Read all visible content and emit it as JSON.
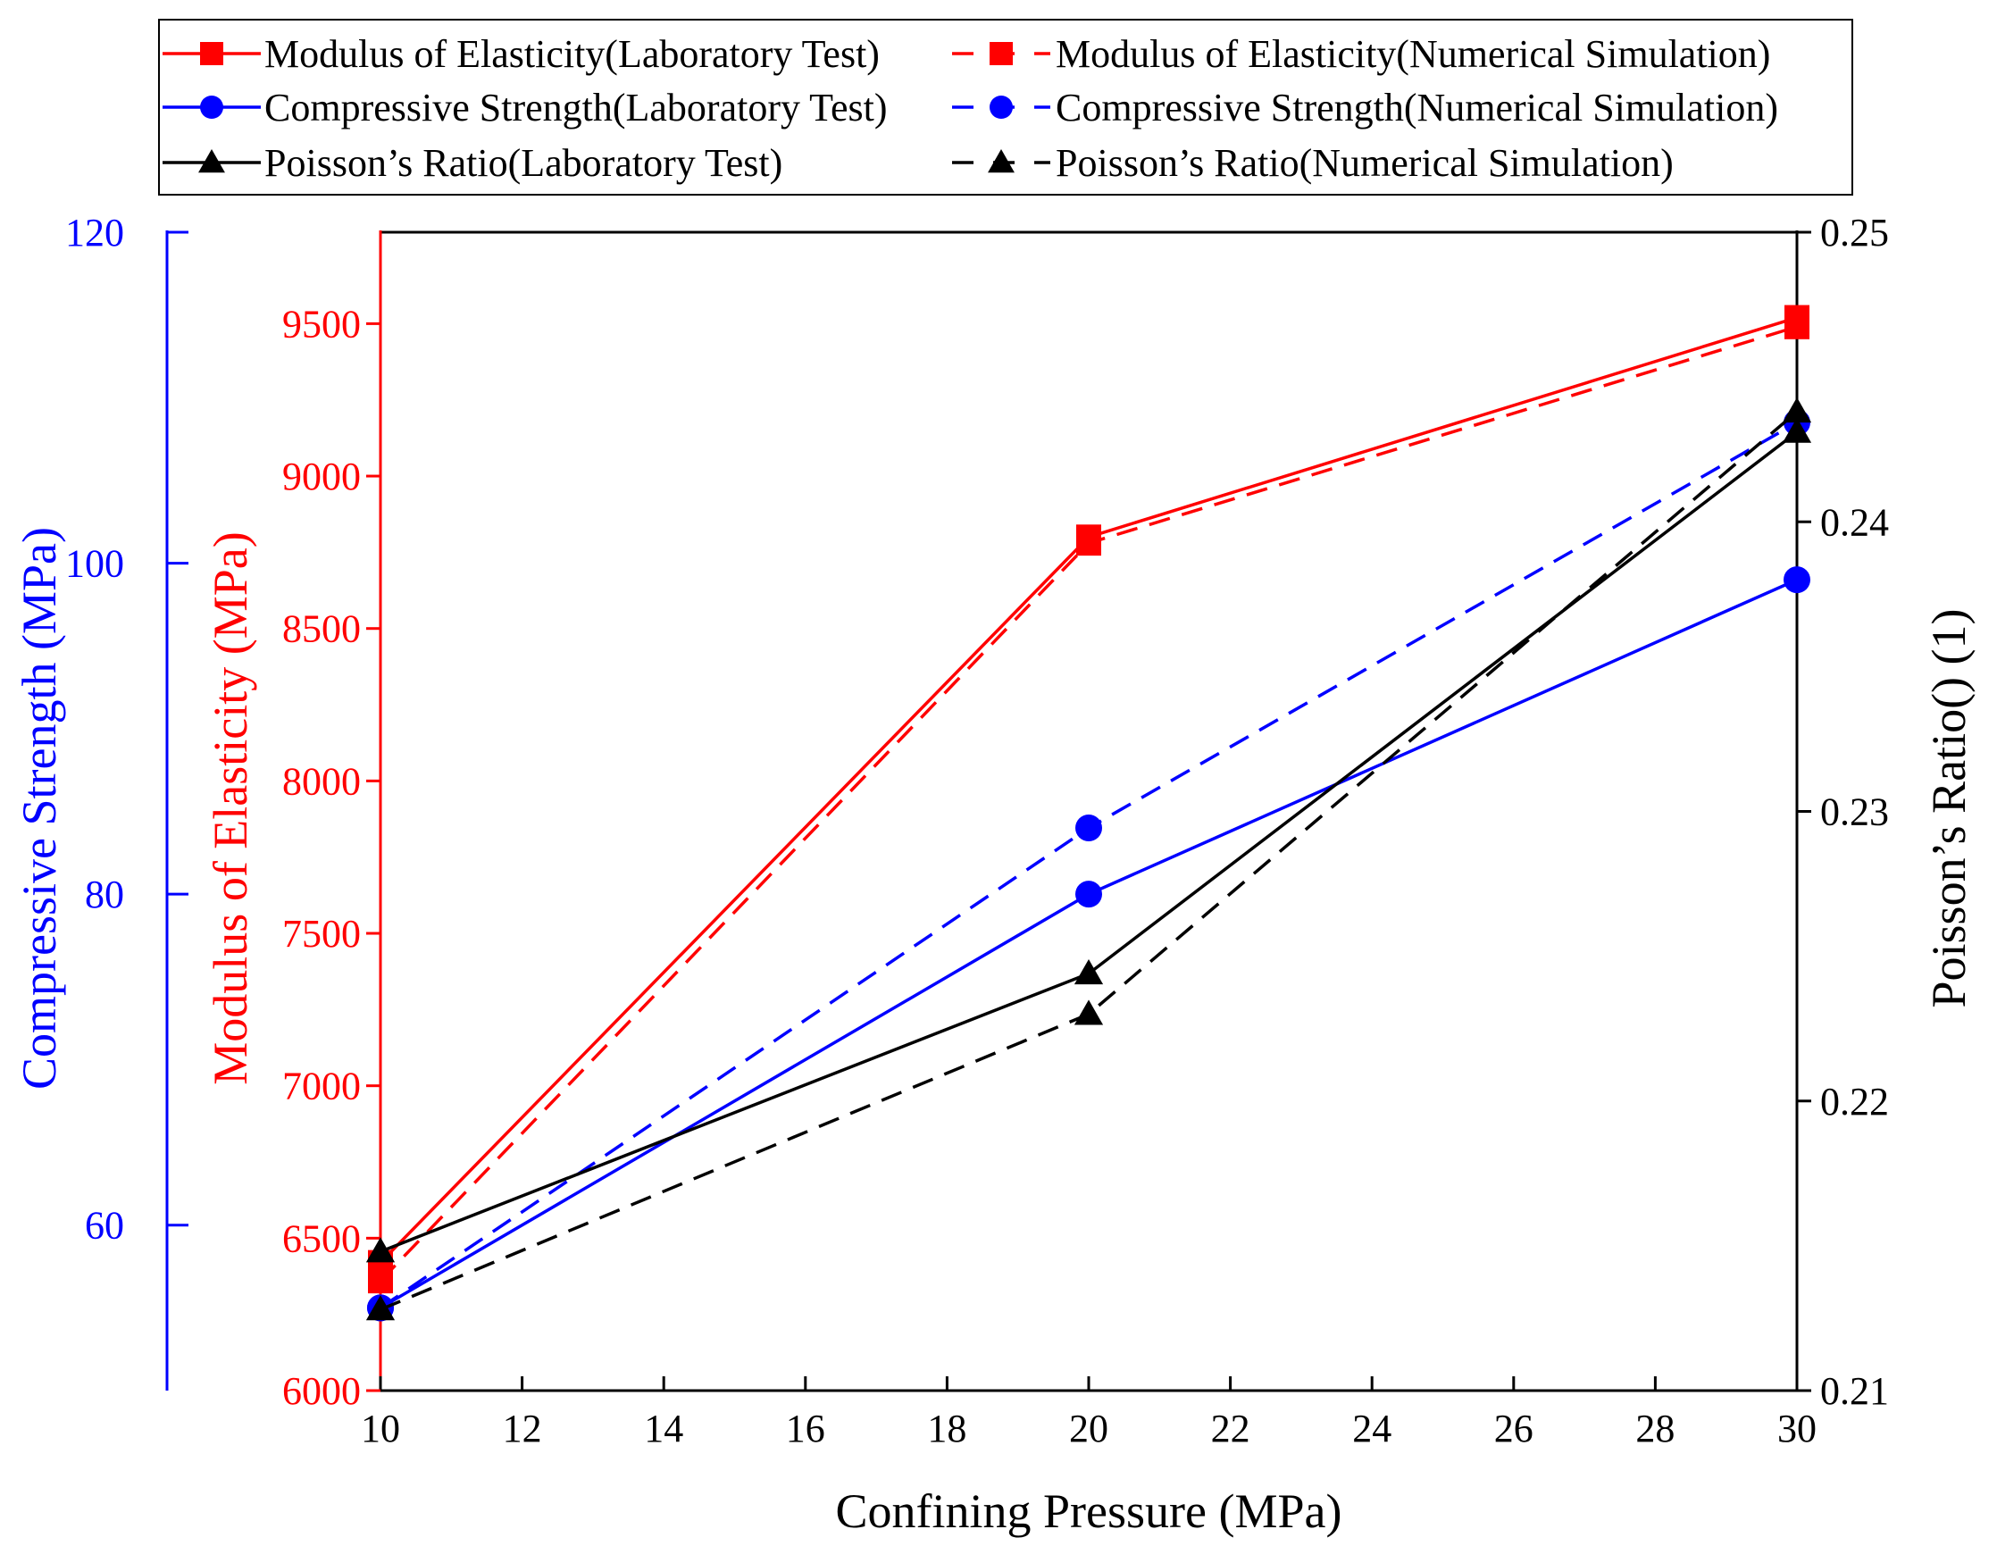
{
  "chart_data": {
    "type": "line",
    "x": [
      10,
      20,
      30
    ],
    "xlabel": "Confining Pressure (MPa)",
    "xlim": [
      10,
      30
    ],
    "xticks": [
      "10",
      "12",
      "14",
      "16",
      "18",
      "20",
      "22",
      "24",
      "26",
      "28",
      "30"
    ],
    "axes": {
      "left_outer": {
        "label": "Compressive Strength (MPa)",
        "color": "#0000ff",
        "ylim": [
          50,
          120
        ],
        "ticks": [
          "60",
          "80",
          "100",
          "120"
        ]
      },
      "left_inner": {
        "label": "Modulus of Elasticity (MPa)",
        "color": "#ff0000",
        "ylim": [
          6000,
          9800
        ],
        "ticks": [
          "6000",
          "6500",
          "7000",
          "7500",
          "8000",
          "8500",
          "9000",
          "9500"
        ]
      },
      "right": {
        "label": "Poisson’s Ratio() (1)",
        "color": "#000000",
        "ylim": [
          0.21,
          0.25
        ],
        "ticks": [
          "0.21",
          "0.22",
          "0.23",
          "0.24",
          "0.25"
        ]
      }
    },
    "series": [
      {
        "name": "Modulus of Elasticity(Laboratory Test)",
        "axis": "left_inner",
        "color": "#ff0000",
        "dash": "solid",
        "marker": "square",
        "values": [
          6420,
          8800,
          9520
        ]
      },
      {
        "name": "Modulus of Elasticity(Numerical Simulation)",
        "axis": "left_inner",
        "color": "#ff0000",
        "dash": "dashed",
        "marker": "square",
        "values": [
          6360,
          8780,
          9490
        ]
      },
      {
        "name": "Compressive Strength(Laboratory Test)",
        "axis": "left_outer",
        "color": "#0000ff",
        "dash": "solid",
        "marker": "circle",
        "values": [
          55,
          80,
          99
        ]
      },
      {
        "name": "Compressive Strength(Numerical Simulation)",
        "axis": "left_outer",
        "color": "#0000ff",
        "dash": "dashed",
        "marker": "circle",
        "values": [
          55,
          84,
          108.5
        ]
      },
      {
        "name": "Poisson’s Ratio(Laboratory Test)",
        "axis": "right",
        "color": "#000000",
        "dash": "solid",
        "marker": "triangle",
        "values": [
          0.2148,
          0.2244,
          0.2431
        ]
      },
      {
        "name": "Poisson’s Ratio(Numerical Simulation)",
        "axis": "right",
        "color": "#000000",
        "dash": "dashed",
        "marker": "triangle",
        "values": [
          0.2128,
          0.223,
          0.2438
        ]
      }
    ],
    "legend_position": "top"
  }
}
